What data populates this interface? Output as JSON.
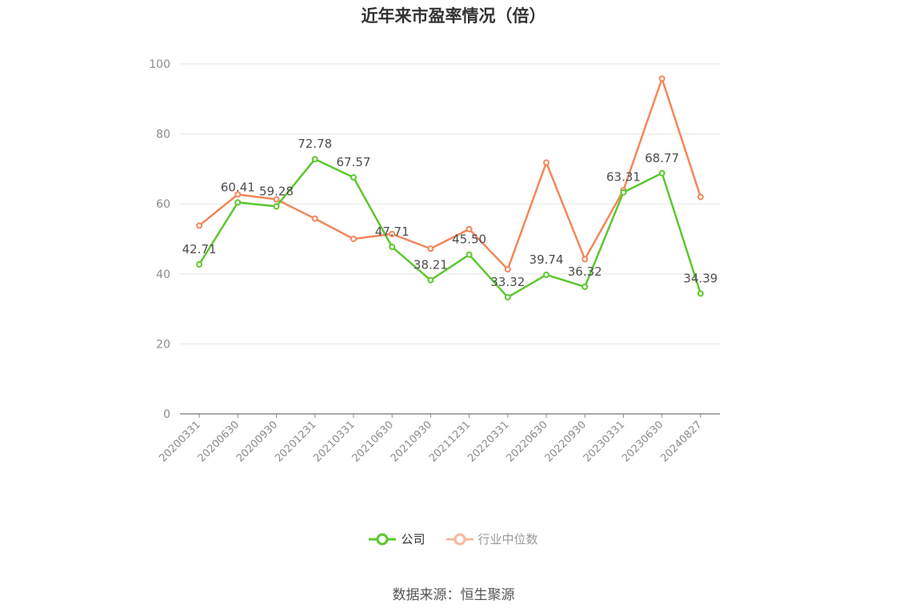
{
  "title": "近年来市盈率情况（倍）",
  "source": "数据来源：恒生聚源",
  "colors": {
    "company": "#5cc72e",
    "industry": "#f2875a",
    "industry_legend": "#f6b9a0"
  },
  "chart_data": {
    "type": "line",
    "title": "近年来市盈率情况（倍）",
    "xlabel": "",
    "ylabel": "",
    "ylim": [
      0,
      100
    ],
    "yticks": [
      0,
      20,
      40,
      60,
      80,
      100
    ],
    "grid": true,
    "legend_position": "bottom",
    "categories": [
      "20200331",
      "20200630",
      "20200930",
      "20201231",
      "20210331",
      "20210630",
      "20210930",
      "20211231",
      "20220331",
      "20220630",
      "20220930",
      "20230331",
      "20230630",
      "20240827"
    ],
    "series": [
      {
        "name": "公司",
        "color": "#5cc72e",
        "show_labels": true,
        "values": [
          42.71,
          60.41,
          59.28,
          72.78,
          67.57,
          47.71,
          38.21,
          45.5,
          33.32,
          39.74,
          36.32,
          63.31,
          68.77,
          34.39
        ]
      },
      {
        "name": "行业中位数",
        "color": "#f2875a",
        "show_labels": false,
        "values": [
          53.8,
          62.7,
          61.3,
          55.8,
          50.0,
          51.4,
          47.2,
          52.8,
          41.3,
          71.8,
          44.2,
          63.9,
          95.8,
          62.0
        ]
      }
    ]
  }
}
